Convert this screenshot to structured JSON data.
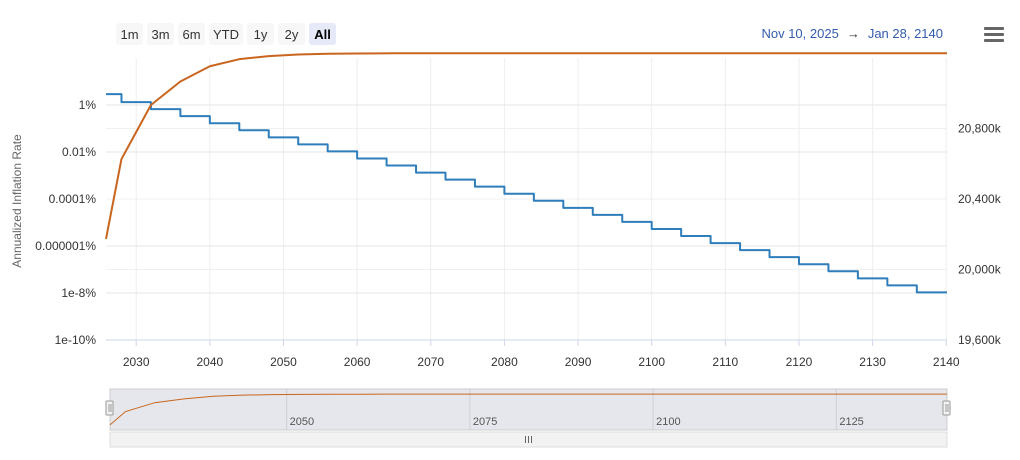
{
  "toolbar": {
    "zoom_buttons": [
      "1m",
      "3m",
      "6m",
      "YTD",
      "1y",
      "2y",
      "All"
    ],
    "selected": "All",
    "range_from": "Nov 10, 2025",
    "range_arrow": "→",
    "range_to": "Jan 28, 2140",
    "menu_icon": "hamburger-menu-icon"
  },
  "chart_data": {
    "type": "line",
    "x_label": "",
    "x_range": [
      2025.9,
      2140.1
    ],
    "x_ticks": [
      2030,
      2040,
      2050,
      2060,
      2070,
      2080,
      2090,
      2100,
      2110,
      2120,
      2130,
      2140
    ],
    "y_left": {
      "label": "Annualized Inflation Rate",
      "scale": "log",
      "ticks": [
        "1%",
        "0.01%",
        "0.0001%",
        "0.000001%",
        "1e-8%",
        "1e-10%"
      ],
      "range_exp": [
        -10,
        2
      ]
    },
    "y_right": {
      "label": "",
      "scale": "linear",
      "ticks": [
        "20,800k",
        "20,400k",
        "20,000k",
        "19,600k"
      ],
      "tick_values": [
        20800,
        20400,
        20000,
        19600
      ],
      "range": [
        19600,
        21200
      ]
    },
    "grid": true,
    "series": [
      {
        "axis": "right",
        "color": "#2f7ebc",
        "step": true,
        "x": [
          2025.9,
          2028,
          2032,
          2036,
          2040,
          2044,
          2048,
          2052,
          2056,
          2060,
          2064,
          2068,
          2072,
          2076,
          2080,
          2084,
          2088,
          2092,
          2096,
          2100,
          2104,
          2108,
          2112,
          2116,
          2120,
          2124,
          2128,
          2132,
          2136,
          2140.1
        ],
        "values": [
          20995,
          20950,
          20910,
          20870,
          20830,
          20790,
          20750,
          20710,
          20670,
          20630,
          20590,
          20550,
          20510,
          20470,
          20430,
          20390,
          20350,
          20310,
          20270,
          20230,
          20190,
          20150,
          20110,
          20070,
          20030,
          19990,
          19950,
          19910,
          19870,
          19870
        ]
      },
      {
        "axis": "left",
        "color": "#c9651e",
        "step": false,
        "x": [
          2025.9,
          2028,
          2032,
          2036,
          2040,
          2044,
          2048,
          2052,
          2056,
          2060,
          2065,
          2070,
          2080,
          2100,
          2120,
          2140.1
        ],
        "log10_percent": [
          -5.7,
          -2.3,
          0.0,
          1.0,
          1.65,
          1.95,
          2.08,
          2.15,
          2.18,
          2.19,
          2.2,
          2.2,
          2.2,
          2.2,
          2.2,
          2.2
        ]
      }
    ],
    "navigator": {
      "x_ticks": [
        2050,
        2075,
        2100,
        2125
      ],
      "handle_icon": "navigator-handle-icon",
      "scrollbar_grip": "scrollbar-grip-icon"
    }
  }
}
